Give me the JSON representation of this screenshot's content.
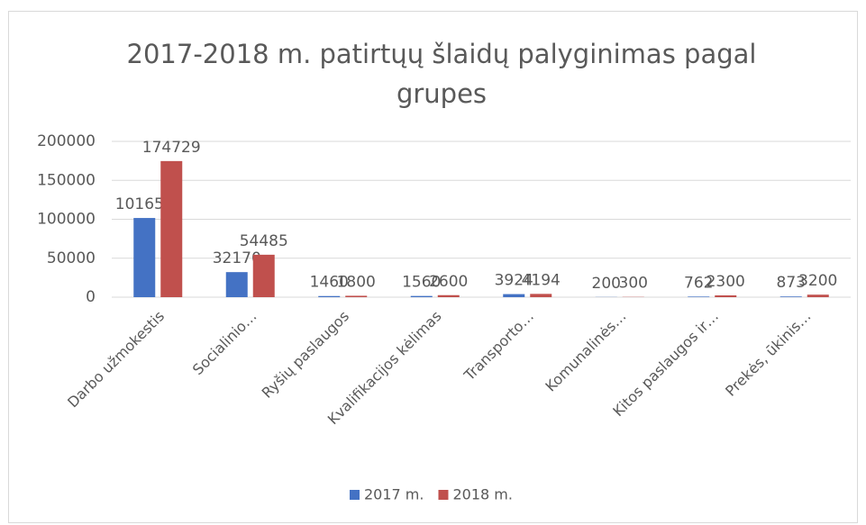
{
  "chart_data": {
    "type": "bar",
    "title": "2017-2018 m. patirtųų šlaidų palyginimas pagal grupes",
    "categories": [
      "Darbo užmokestis",
      "Socialinio…",
      "Ryšių paslaugos",
      "Kvalifikacijos kėlimas",
      "Transporto…",
      "Komunalinės…",
      "Kitos paslaugos ir…",
      "Prekės, ūkinis…"
    ],
    "series": [
      {
        "name": "2017 m.",
        "color": "#4472c4",
        "values": [
          101658,
          32170,
          1460,
          1560,
          3924,
          200,
          762,
          873
        ]
      },
      {
        "name": "2018 m.",
        "color": "#c0504d",
        "values": [
          174729,
          54485,
          1800,
          2600,
          4194,
          300,
          2300,
          3200
        ]
      }
    ],
    "ylim": [
      0,
      200000
    ],
    "yticks": [
      0,
      50000,
      100000,
      150000,
      200000
    ],
    "grid": true,
    "legend": "bottom"
  }
}
